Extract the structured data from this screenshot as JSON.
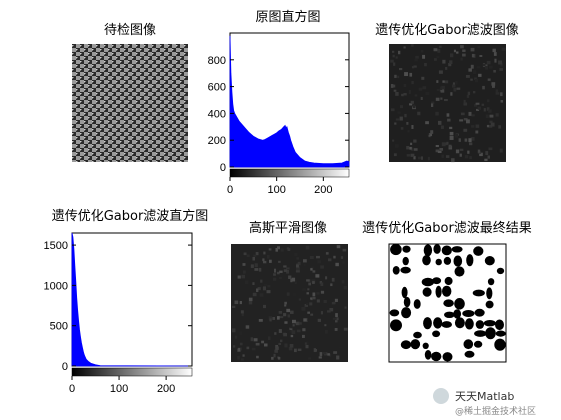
{
  "panels": [
    {
      "id": "p1",
      "title": "待检图像",
      "kind": "texture"
    },
    {
      "id": "p2",
      "title": "原图直方图",
      "kind": "histogram"
    },
    {
      "id": "p3",
      "title": "遗传优化Gabor滤波图像",
      "kind": "noise"
    },
    {
      "id": "p4",
      "title": "遗传优化Gabor滤波直方图",
      "kind": "histogram"
    },
    {
      "id": "p5",
      "title": "高斯平滑图像",
      "kind": "noise"
    },
    {
      "id": "p6",
      "title": "遗传优化Gabor滤波最终结果",
      "kind": "binary"
    }
  ],
  "watermark": {
    "line1": "天天Matlab",
    "line2": "@稀土掘金技术社区"
  },
  "colors": {
    "bar": "#0000ff",
    "axis": "#000000",
    "dark_image": "#1e1e1e"
  },
  "chart_data": [
    {
      "type": "bar",
      "title": "原图直方图",
      "xlabel": "",
      "ylabel": "",
      "xlim": [
        0,
        255
      ],
      "ylim": [
        0,
        1000
      ],
      "xticks": [
        0,
        100,
        200
      ],
      "yticks": [
        0,
        200,
        400,
        600,
        800
      ],
      "colorbar": "grayscale",
      "series": [
        {
          "x": [
            0,
            2,
            4,
            6,
            8,
            10,
            15,
            20,
            30,
            40,
            50,
            60,
            70,
            75,
            80,
            85,
            90,
            95,
            100,
            105,
            110,
            115,
            118,
            120,
            122,
            125,
            128,
            130,
            135,
            140,
            150,
            160,
            170,
            180,
            200,
            220,
            240,
            250,
            255
          ],
          "values": [
            980,
            700,
            560,
            470,
            420,
            400,
            370,
            340,
            300,
            260,
            230,
            210,
            200,
            205,
            215,
            225,
            235,
            245,
            255,
            270,
            280,
            300,
            310,
            290,
            300,
            260,
            230,
            200,
            150,
            110,
            70,
            45,
            35,
            30,
            25,
            25,
            30,
            45,
            40
          ]
        }
      ]
    },
    {
      "type": "bar",
      "title": "遗传优化Gabor滤波直方图",
      "xlabel": "",
      "ylabel": "",
      "xlim": [
        0,
        255
      ],
      "ylim": [
        0,
        1650
      ],
      "xticks": [
        0,
        100,
        200
      ],
      "yticks": [
        0,
        500,
        1000,
        1500
      ],
      "colorbar": "grayscale",
      "series": [
        {
          "x": [
            0,
            2,
            4,
            6,
            8,
            10,
            12,
            14,
            16,
            18,
            20,
            22,
            24,
            26,
            28,
            30,
            35,
            40,
            50,
            60,
            255
          ],
          "values": [
            1650,
            1600,
            1450,
            1250,
            1050,
            850,
            700,
            560,
            450,
            360,
            290,
            230,
            180,
            140,
            110,
            85,
            55,
            35,
            15,
            5,
            0
          ]
        }
      ]
    }
  ]
}
